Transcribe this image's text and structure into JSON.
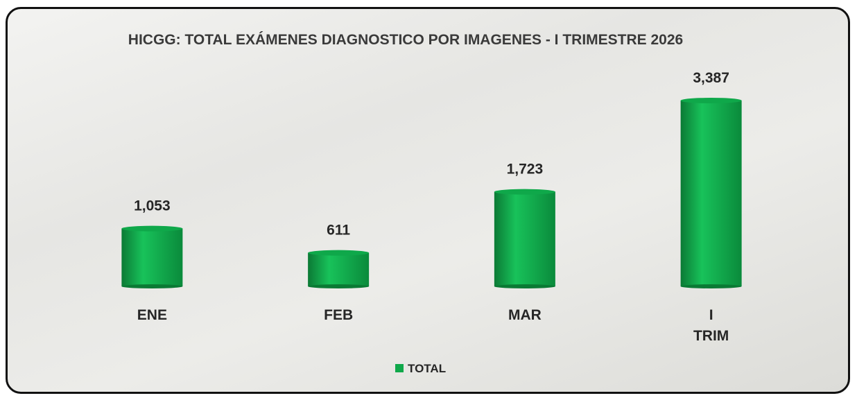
{
  "chart_data": {
    "type": "bar",
    "title": "HICGG: TOTAL EXÁMENES DIAGNOSTICO POR IMAGENES - I TRIMESTRE 2026",
    "categories": [
      "ENE",
      "FEB",
      "MAR",
      "I TRIM"
    ],
    "series": [
      {
        "name": "TOTAL",
        "color": "#0fa84a",
        "values": [
          1053,
          611,
          1723,
          3387
        ],
        "value_labels": [
          "1,053",
          "611",
          "1,723",
          "3,387"
        ]
      }
    ],
    "legend": "bottom"
  }
}
